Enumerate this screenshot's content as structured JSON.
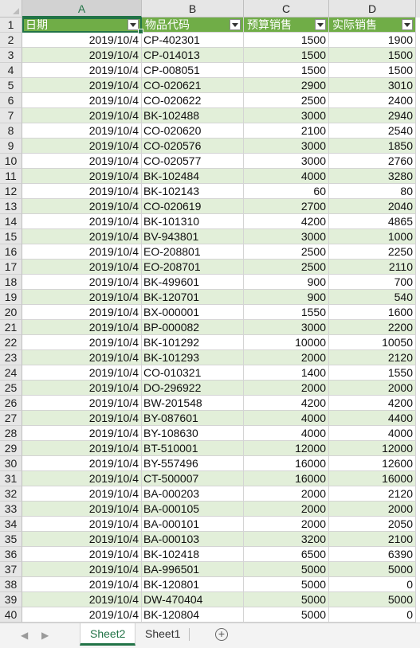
{
  "column_headers": [
    "A",
    "B",
    "C",
    "D"
  ],
  "table": {
    "headers": [
      "日期",
      "物品代码",
      "预算销售",
      "实际销售"
    ],
    "rows": [
      [
        "2019/10/4",
        "CP-402301",
        "1500",
        "1900"
      ],
      [
        "2019/10/4",
        "CP-014013",
        "1500",
        "1500"
      ],
      [
        "2019/10/4",
        "CP-008051",
        "1500",
        "1500"
      ],
      [
        "2019/10/4",
        "CO-020621",
        "2900",
        "3010"
      ],
      [
        "2019/10/4",
        "CO-020622",
        "2500",
        "2400"
      ],
      [
        "2019/10/4",
        "BK-102488",
        "3000",
        "2940"
      ],
      [
        "2019/10/4",
        "CO-020620",
        "2100",
        "2540"
      ],
      [
        "2019/10/4",
        "CO-020576",
        "3000",
        "1850"
      ],
      [
        "2019/10/4",
        "CO-020577",
        "3000",
        "2760"
      ],
      [
        "2019/10/4",
        "BK-102484",
        "4000",
        "3280"
      ],
      [
        "2019/10/4",
        "BK-102143",
        "60",
        "80"
      ],
      [
        "2019/10/4",
        "CO-020619",
        "2700",
        "2040"
      ],
      [
        "2019/10/4",
        "BK-101310",
        "4200",
        "4865"
      ],
      [
        "2019/10/4",
        "BV-943801",
        "3000",
        "1000"
      ],
      [
        "2019/10/4",
        "EO-208801",
        "2500",
        "2250"
      ],
      [
        "2019/10/4",
        "EO-208701",
        "2500",
        "2110"
      ],
      [
        "2019/10/4",
        "BK-499601",
        "900",
        "700"
      ],
      [
        "2019/10/4",
        "BK-120701",
        "900",
        "540"
      ],
      [
        "2019/10/4",
        "BX-000001",
        "1550",
        "1600"
      ],
      [
        "2019/10/4",
        "BP-000082",
        "3000",
        "2200"
      ],
      [
        "2019/10/4",
        "BK-101292",
        "10000",
        "10050"
      ],
      [
        "2019/10/4",
        "BK-101293",
        "2000",
        "2120"
      ],
      [
        "2019/10/4",
        "CO-010321",
        "1400",
        "1550"
      ],
      [
        "2019/10/4",
        "DO-296922",
        "2000",
        "2000"
      ],
      [
        "2019/10/4",
        "BW-201548",
        "4200",
        "4200"
      ],
      [
        "2019/10/4",
        "BY-087601",
        "4000",
        "4400"
      ],
      [
        "2019/10/4",
        "BY-108630",
        "4000",
        "4000"
      ],
      [
        "2019/10/4",
        "BT-510001",
        "12000",
        "12000"
      ],
      [
        "2019/10/4",
        "BY-557496",
        "16000",
        "12600"
      ],
      [
        "2019/10/4",
        "CT-500007",
        "16000",
        "16000"
      ],
      [
        "2019/10/4",
        "BA-000203",
        "2000",
        "2120"
      ],
      [
        "2019/10/4",
        "BA-000105",
        "2000",
        "2000"
      ],
      [
        "2019/10/4",
        "BA-000101",
        "2000",
        "2050"
      ],
      [
        "2019/10/4",
        "BA-000103",
        "3200",
        "2100"
      ],
      [
        "2019/10/4",
        "BK-102418",
        "6500",
        "6390"
      ],
      [
        "2019/10/4",
        "BA-996501",
        "5000",
        "5000"
      ],
      [
        "2019/10/4",
        "BK-120801",
        "5000",
        "0"
      ],
      [
        "2019/10/4",
        "DW-470404",
        "5000",
        "5000"
      ],
      [
        "2019/10/4",
        "BK-120804",
        "5000",
        "0"
      ]
    ]
  },
  "sheet_tabs": [
    "Sheet2",
    "Sheet1"
  ],
  "active_tab": "Sheet2",
  "colors": {
    "header_fill": "#70ad47",
    "band_fill": "#e2efd9",
    "accent": "#217346"
  },
  "icons": {
    "filter": "filter-dropdown-icon",
    "nav_prev": "scroll-left-icon",
    "nav_next": "scroll-right-icon",
    "add_sheet": "add-sheet-icon"
  }
}
